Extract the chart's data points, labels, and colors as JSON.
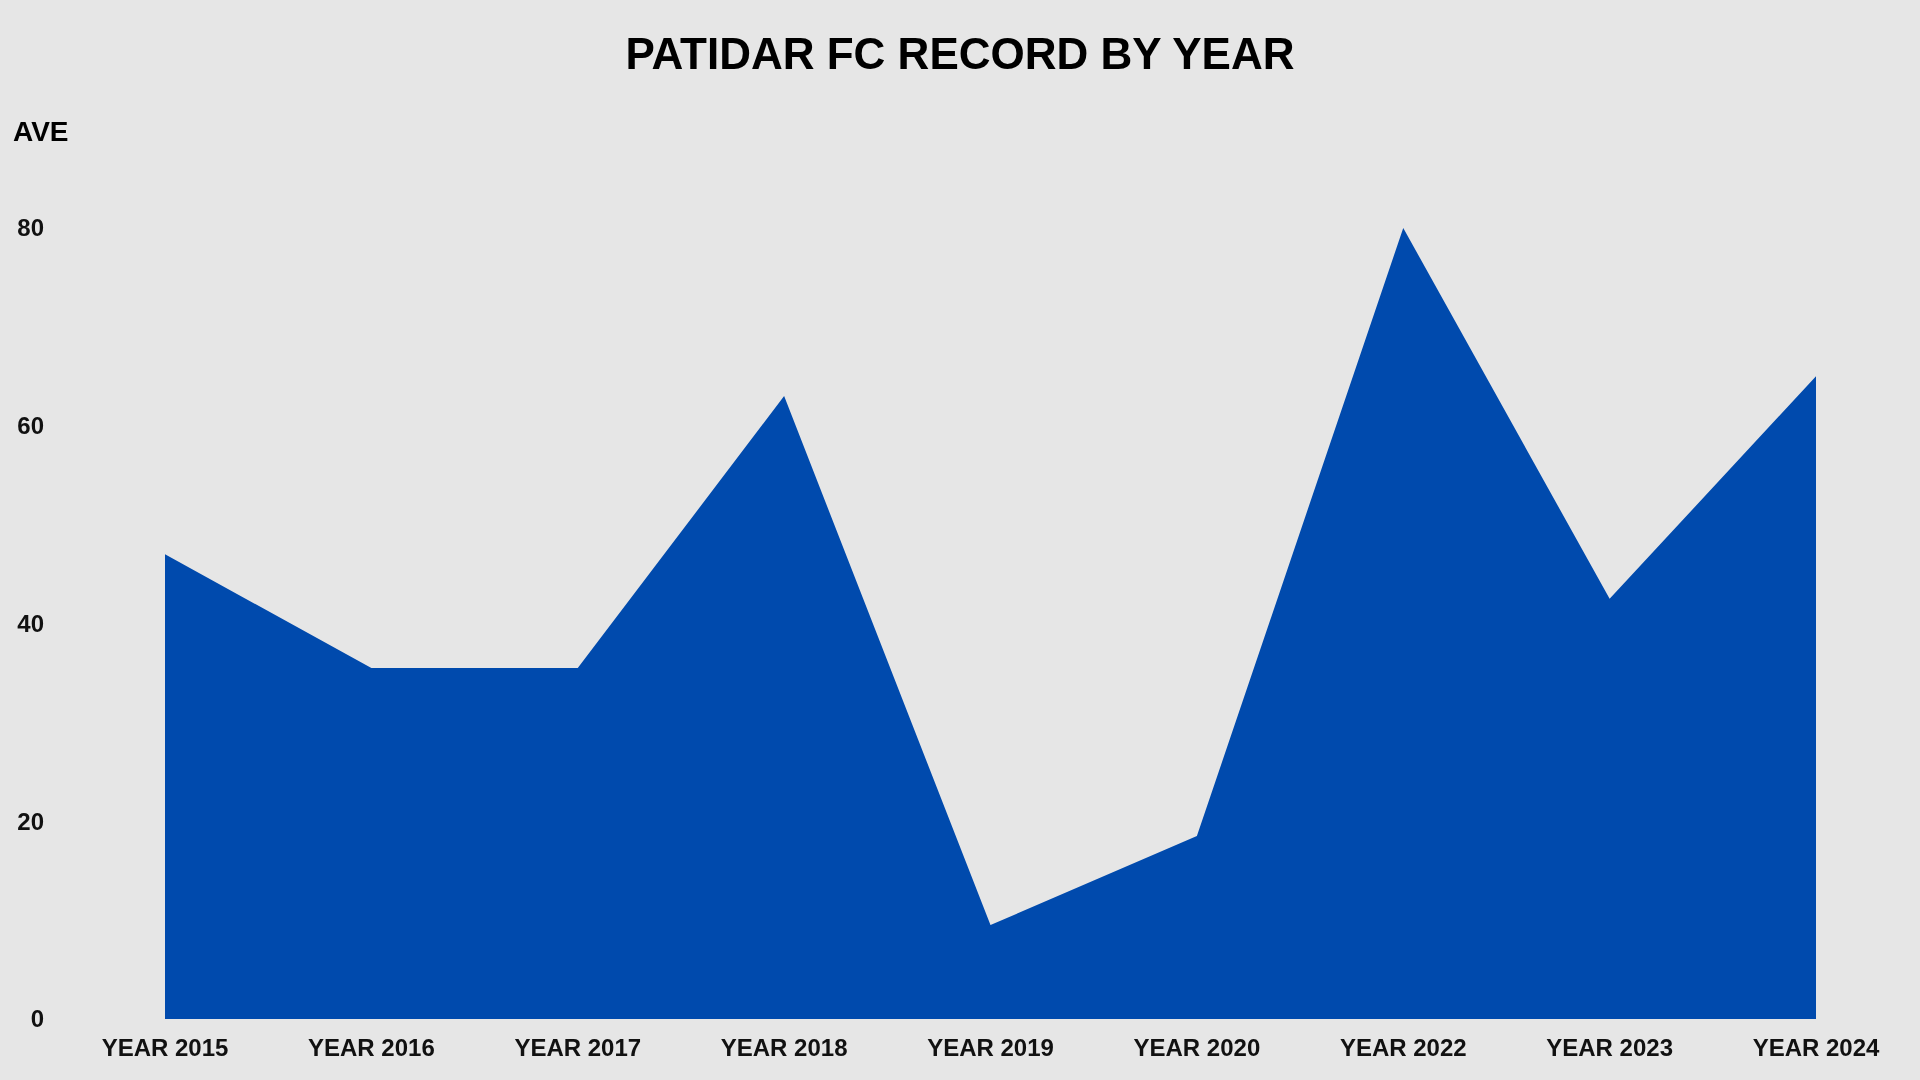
{
  "chart_data": {
    "type": "area",
    "title": "PATIDAR FC RECORD BY YEAR",
    "ylabel": "AVE",
    "categories": [
      "YEAR 2015",
      "YEAR 2016",
      "YEAR 2017",
      "YEAR 2018",
      "YEAR 2019",
      "YEAR 2020",
      "YEAR 2022",
      "YEAR 2023",
      "YEAR 2024"
    ],
    "series": [
      {
        "color": "#004aad",
        "values": [
          47,
          35.5,
          35.5,
          63,
          9.5,
          18.5,
          80,
          42.5,
          65
        ]
      }
    ],
    "ylim": [
      0,
      80
    ],
    "yticks": [
      0,
      20,
      40,
      60,
      80
    ]
  }
}
